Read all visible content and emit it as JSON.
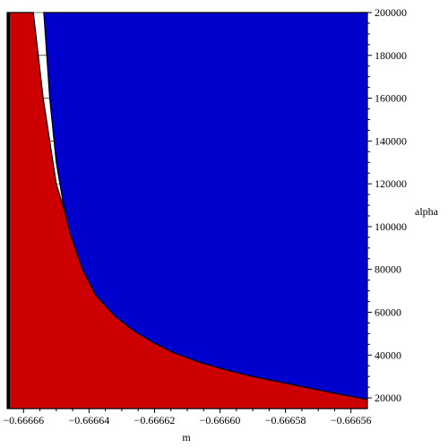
{
  "chart_data": {
    "type": "area",
    "title": "",
    "xlabel": "m",
    "ylabel": "alpha",
    "xlim": [
      -0.666665,
      -0.666555
    ],
    "ylim": [
      15000,
      200000
    ],
    "x_ticks": [
      -0.66666,
      -0.66664,
      -0.66662,
      -0.6666,
      -0.66658,
      -0.66656
    ],
    "x_tick_labels": [
      "−0.66666",
      "−0.66664",
      "−0.66662",
      "−0.66660",
      "−0.66658",
      "−0.66656"
    ],
    "y_ticks": [
      20000,
      40000,
      60000,
      80000,
      100000,
      120000,
      140000,
      160000,
      180000,
      200000
    ],
    "y_tick_labels": [
      "20000",
      "40000",
      "60000",
      "80000",
      "100000",
      "120000",
      "140000",
      "160000",
      "180000",
      "200000"
    ],
    "grid": true,
    "regions": [
      {
        "color": "#cc0000",
        "side": "below",
        "boundary": {
          "x": [
            -0.666657,
            -0.6666555,
            -0.666654,
            -0.666652,
            -0.66665,
            -0.666646,
            -0.666642,
            -0.666636,
            -0.66663,
            -0.666624,
            -0.666618,
            -0.666612,
            -0.666604,
            -0.666596,
            -0.666588,
            -0.66658,
            -0.666572,
            -0.666566,
            -0.666561,
            -0.666556
          ],
          "y": [
            200000,
            180000,
            160000,
            140000,
            120000,
            100000,
            86000,
            72000,
            62000,
            54000,
            48000,
            43000,
            38000,
            34000,
            31000,
            28500,
            26000,
            24000,
            22000,
            20000
          ]
        }
      },
      {
        "color": "#0000cc",
        "side": "above",
        "boundary": {
          "x": [
            -0.6666538,
            -0.666652,
            -0.66665,
            -0.666648,
            -0.666646,
            -0.666642,
            -0.666638,
            -0.666632,
            -0.666626,
            -0.66662,
            -0.666614,
            -0.666606,
            -0.666598,
            -0.66659,
            -0.666582,
            -0.666574,
            -0.666566,
            -0.666556
          ],
          "y": [
            200000,
            160000,
            130000,
            112000,
            98000,
            80000,
            68000,
            58000,
            51000,
            45500,
            41000,
            36500,
            33000,
            30000,
            27500,
            25000,
            22500,
            19500
          ]
        }
      }
    ]
  }
}
